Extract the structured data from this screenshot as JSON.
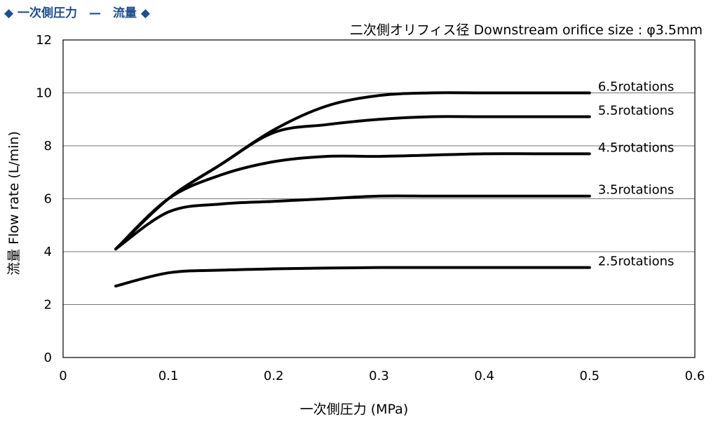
{
  "header": {
    "title": "◆ 一次側圧力　—　流量 ◆"
  },
  "chart_data": {
    "type": "line",
    "title": "",
    "subtitle": "二次側オリフィス径 Downstream orifice size : φ3.5mm",
    "xlabel": "一次側圧力 (MPa)",
    "ylabel": "流量 Flow rate (L/min)",
    "xlim": [
      0,
      0.6
    ],
    "ylim": [
      0,
      12
    ],
    "xticks": [
      "0",
      "0.1",
      "0.2",
      "0.3",
      "0.4",
      "0.5",
      "0.6"
    ],
    "yticks": [
      "0",
      "2",
      "4",
      "6",
      "8",
      "10",
      "12"
    ],
    "grid": "horizontal",
    "line_color": "#000000",
    "series": [
      {
        "name": "6.5rotations",
        "x": [
          0.05,
          0.1,
          0.15,
          0.2,
          0.25,
          0.3,
          0.35,
          0.4,
          0.45,
          0.5
        ],
        "y": [
          4.1,
          6.0,
          7.3,
          8.6,
          9.5,
          9.9,
          10.0,
          10.0,
          10.0,
          10.0
        ]
      },
      {
        "name": "5.5rotations",
        "x": [
          0.05,
          0.1,
          0.15,
          0.2,
          0.25,
          0.3,
          0.35,
          0.4,
          0.45,
          0.5
        ],
        "y": [
          4.1,
          6.0,
          7.3,
          8.5,
          8.8,
          9.0,
          9.1,
          9.1,
          9.1,
          9.1
        ]
      },
      {
        "name": "4.5rotations",
        "x": [
          0.05,
          0.1,
          0.15,
          0.2,
          0.25,
          0.3,
          0.35,
          0.4,
          0.45,
          0.5
        ],
        "y": [
          4.1,
          6.0,
          6.9,
          7.4,
          7.6,
          7.6,
          7.65,
          7.7,
          7.7,
          7.7
        ]
      },
      {
        "name": "3.5rotations",
        "x": [
          0.05,
          0.1,
          0.15,
          0.2,
          0.25,
          0.3,
          0.35,
          0.4,
          0.45,
          0.5
        ],
        "y": [
          4.1,
          5.5,
          5.8,
          5.9,
          6.0,
          6.1,
          6.1,
          6.1,
          6.1,
          6.1
        ]
      },
      {
        "name": "2.5rotations",
        "x": [
          0.05,
          0.1,
          0.15,
          0.2,
          0.25,
          0.3,
          0.35,
          0.4,
          0.45,
          0.5
        ],
        "y": [
          2.7,
          3.2,
          3.3,
          3.35,
          3.38,
          3.4,
          3.4,
          3.4,
          3.4,
          3.4
        ]
      }
    ]
  }
}
